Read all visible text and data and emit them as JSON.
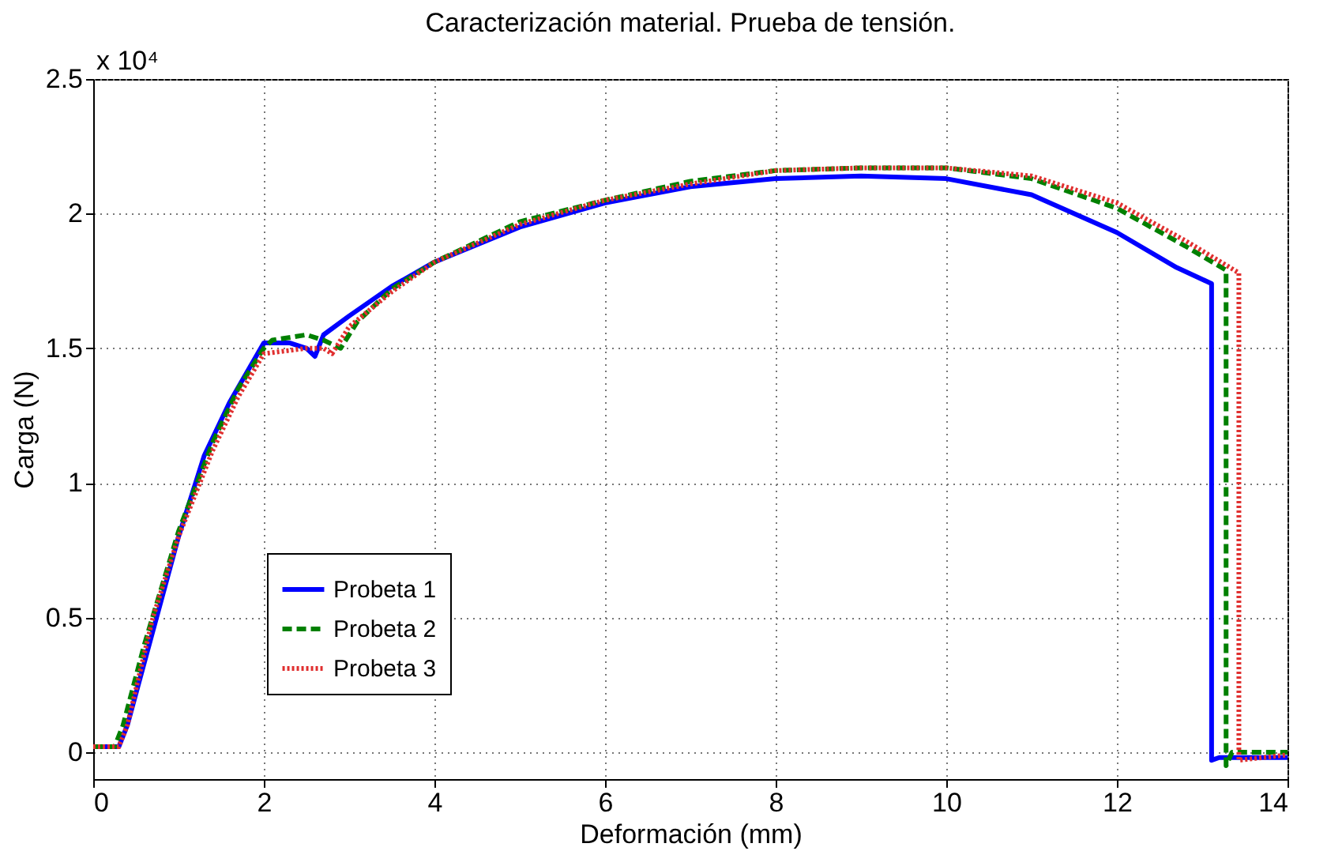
{
  "chart_data": {
    "type": "line",
    "title": "Caracterización material. Prueba de tensión.",
    "xlabel": "Deformación (mm)",
    "ylabel": "Carga (N)",
    "annotations": [
      "x 10⁴"
    ],
    "xlim": [
      0,
      14
    ],
    "xticks": [
      0,
      2,
      4,
      6,
      8,
      10,
      12,
      14
    ],
    "ylim": [
      -0.1,
      2.5
    ],
    "yticks": [
      0,
      0.5,
      1,
      1.5,
      2,
      2.5
    ],
    "grid": true,
    "legend": "bottom left",
    "marker": "none",
    "series": [
      {
        "name": "Probeta 1",
        "color": "#0000ff",
        "line_style": "solid",
        "x": [
          0,
          0.3,
          0.4,
          0.7,
          1.0,
          1.3,
          1.6,
          2.0,
          2.3,
          2.5,
          2.6,
          2.7,
          3.0,
          3.5,
          4,
          5,
          6,
          7,
          8,
          9,
          10,
          11,
          12,
          12.7,
          13.11,
          13.11,
          13.2,
          14
        ],
        "values": [
          0.02,
          0.02,
          0.1,
          0.45,
          0.8,
          1.1,
          1.3,
          1.52,
          1.52,
          1.5,
          1.47,
          1.55,
          1.62,
          1.73,
          1.82,
          1.95,
          2.04,
          2.1,
          2.13,
          2.14,
          2.13,
          2.07,
          1.93,
          1.8,
          1.74,
          -0.03,
          -0.02,
          -0.02
        ]
      },
      {
        "name": "Probeta 2",
        "color": "#008000",
        "line_style": "dashed",
        "x": [
          0,
          0.25,
          0.35,
          0.6,
          1.0,
          1.4,
          1.7,
          2.0,
          2.1,
          2.5,
          2.7,
          2.9,
          3.1,
          3.5,
          4,
          5,
          6,
          7,
          8,
          9,
          10,
          11,
          12,
          12.8,
          13.28,
          13.28,
          13.35,
          14
        ],
        "values": [
          0.02,
          0.02,
          0.1,
          0.4,
          0.82,
          1.15,
          1.35,
          1.5,
          1.53,
          1.55,
          1.53,
          1.5,
          1.6,
          1.72,
          1.82,
          1.97,
          2.05,
          2.12,
          2.16,
          2.17,
          2.17,
          2.13,
          2.02,
          1.88,
          1.79,
          -0.05,
          0,
          0
        ]
      },
      {
        "name": "Probeta 3",
        "color": "#e03030",
        "line_style": "dotted",
        "x": [
          0,
          0.3,
          0.4,
          0.7,
          1.0,
          1.4,
          1.7,
          2.0,
          2.5,
          2.7,
          2.8,
          3.0,
          3.5,
          4,
          5,
          6,
          7,
          8,
          9,
          10,
          11,
          12,
          12.8,
          13.43,
          13.43,
          14
        ],
        "values": [
          0.02,
          0.02,
          0.1,
          0.5,
          0.8,
          1.12,
          1.32,
          1.48,
          1.5,
          1.5,
          1.48,
          1.58,
          1.71,
          1.82,
          1.96,
          2.05,
          2.11,
          2.16,
          2.17,
          2.17,
          2.14,
          2.04,
          1.9,
          1.78,
          -0.03,
          -0.01
        ]
      }
    ]
  }
}
